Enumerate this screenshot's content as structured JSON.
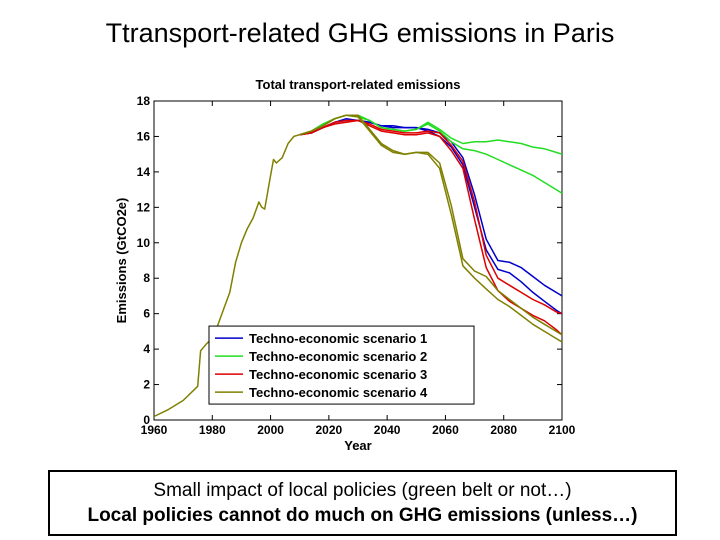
{
  "slide": {
    "title": "Ttransport-related GHG emissions in Paris",
    "caption_line1": "Small impact of  local policies (green belt or not…)",
    "caption_line2": "Local policies cannot do much on GHG emissions (unless…)"
  },
  "chart_data": {
    "type": "line",
    "title": "Total transport-related emissions",
    "xlabel": "Year",
    "ylabel": "Emissions (GtCO2e)",
    "xlim": [
      1960,
      2100
    ],
    "ylim": [
      0,
      18
    ],
    "xticks": [
      1960,
      1980,
      2000,
      2020,
      2040,
      2060,
      2080,
      2100
    ],
    "yticks": [
      0,
      2,
      4,
      6,
      8,
      10,
      12,
      14,
      16,
      18
    ],
    "legend_position": "bottom-center",
    "history": {
      "x": [
        1960,
        1965,
        1970,
        1975,
        1976,
        1978,
        1980,
        1982,
        1984,
        1986,
        1988,
        1990,
        1992,
        1994,
        1996,
        1997,
        1998,
        2000,
        2001,
        2002,
        2004,
        2006,
        2008,
        2010
      ],
      "y": [
        0.2,
        0.6,
        1.1,
        1.9,
        3.9,
        4.3,
        4.6,
        5.4,
        6.3,
        7.2,
        8.9,
        10.0,
        10.8,
        11.4,
        12.3,
        12.0,
        11.9,
        13.8,
        14.7,
        14.5,
        14.8,
        15.6,
        16.0,
        16.1
      ],
      "color": "#808000"
    },
    "series": [
      {
        "name": "Techno-economic scenario 1",
        "color": "#0000cc",
        "lines": [
          {
            "x": [
              2010,
              2014,
              2018,
              2022,
              2026,
              2030,
              2034,
              2038,
              2042,
              2046,
              2050,
              2054,
              2058,
              2062,
              2066,
              2070,
              2074,
              2078,
              2082,
              2086,
              2090,
              2094,
              2098,
              2100
            ],
            "y": [
              16.1,
              16.2,
              16.5,
              16.8,
              17.0,
              16.9,
              16.8,
              16.6,
              16.6,
              16.5,
              16.5,
              16.4,
              16.2,
              15.7,
              14.8,
              12.7,
              10.2,
              9.0,
              8.9,
              8.6,
              8.1,
              7.6,
              7.2,
              7.0
            ]
          },
          {
            "x": [
              2010,
              2014,
              2018,
              2022,
              2026,
              2030,
              2034,
              2038,
              2042,
              2046,
              2050,
              2054,
              2058,
              2062,
              2066,
              2070,
              2074,
              2078,
              2082,
              2086,
              2090,
              2094,
              2098,
              2100
            ],
            "y": [
              16.1,
              16.2,
              16.5,
              16.8,
              16.9,
              16.9,
              16.8,
              16.6,
              16.5,
              16.5,
              16.5,
              16.3,
              16.0,
              15.4,
              14.4,
              12.0,
              9.6,
              8.5,
              8.3,
              7.8,
              7.2,
              6.7,
              6.2,
              6.0
            ]
          }
        ]
      },
      {
        "name": "Techno-economic scenario 2",
        "color": "#22dd22",
        "lines": [
          {
            "x": [
              2010,
              2014,
              2018,
              2022,
              2026,
              2030,
              2034,
              2038,
              2042,
              2046,
              2050,
              2054,
              2058,
              2062,
              2066,
              2070,
              2074,
              2078,
              2082,
              2086,
              2090,
              2094,
              2098,
              2100
            ],
            "y": [
              16.1,
              16.3,
              16.7,
              17.0,
              17.2,
              17.2,
              16.9,
              16.5,
              16.4,
              16.3,
              16.4,
              16.8,
              16.4,
              15.9,
              15.6,
              15.7,
              15.7,
              15.8,
              15.7,
              15.6,
              15.4,
              15.3,
              15.1,
              15.0
            ]
          },
          {
            "x": [
              2010,
              2014,
              2018,
              2022,
              2026,
              2030,
              2034,
              2038,
              2042,
              2046,
              2050,
              2054,
              2058,
              2062,
              2066,
              2070,
              2074,
              2078,
              2082,
              2086,
              2090,
              2094,
              2098,
              2100
            ],
            "y": [
              16.1,
              16.3,
              16.7,
              17.0,
              17.2,
              17.1,
              16.9,
              16.5,
              16.4,
              16.3,
              16.4,
              16.7,
              16.3,
              15.7,
              15.3,
              15.2,
              15.0,
              14.7,
              14.4,
              14.1,
              13.8,
              13.4,
              13.0,
              12.8
            ]
          }
        ]
      },
      {
        "name": "Techno-economic scenario 3",
        "color": "#dd0000",
        "lines": [
          {
            "x": [
              2010,
              2014,
              2018,
              2022,
              2026,
              2030,
              2034,
              2038,
              2042,
              2046,
              2050,
              2054,
              2058,
              2062,
              2066,
              2070,
              2074,
              2078,
              2082,
              2086,
              2090,
              2094,
              2098,
              2100
            ],
            "y": [
              16.1,
              16.2,
              16.5,
              16.8,
              16.9,
              16.9,
              16.7,
              16.4,
              16.3,
              16.2,
              16.2,
              16.3,
              16.2,
              15.5,
              14.6,
              12.3,
              9.3,
              8.0,
              7.6,
              7.2,
              6.8,
              6.5,
              6.1,
              6.0
            ]
          },
          {
            "x": [
              2010,
              2014,
              2018,
              2022,
              2026,
              2030,
              2034,
              2038,
              2042,
              2046,
              2050,
              2054,
              2058,
              2062,
              2066,
              2070,
              2074,
              2078,
              2082,
              2086,
              2090,
              2094,
              2098,
              2100
            ],
            "y": [
              16.1,
              16.2,
              16.5,
              16.7,
              16.8,
              16.9,
              16.6,
              16.3,
              16.2,
              16.1,
              16.1,
              16.2,
              16.0,
              15.2,
              14.2,
              11.3,
              8.6,
              7.3,
              6.7,
              6.3,
              5.9,
              5.6,
              5.1,
              4.8
            ]
          }
        ]
      },
      {
        "name": "Techno-economic scenario 4",
        "color": "#808000",
        "lines": [
          {
            "x": [
              2010,
              2014,
              2018,
              2022,
              2026,
              2030,
              2034,
              2038,
              2042,
              2046,
              2050,
              2054,
              2058,
              2062,
              2066,
              2070,
              2074,
              2078,
              2082,
              2086,
              2090,
              2094,
              2098,
              2100
            ],
            "y": [
              16.1,
              16.3,
              16.6,
              17.0,
              17.2,
              17.2,
              16.4,
              15.6,
              15.2,
              15.0,
              15.1,
              15.1,
              14.5,
              12.1,
              9.1,
              8.4,
              8.1,
              7.3,
              6.8,
              6.3,
              5.8,
              5.4,
              5.0,
              4.8
            ]
          },
          {
            "x": [
              2010,
              2014,
              2018,
              2022,
              2026,
              2030,
              2034,
              2038,
              2042,
              2046,
              2050,
              2054,
              2058,
              2062,
              2066,
              2070,
              2074,
              2078,
              2082,
              2086,
              2090,
              2094,
              2098,
              2100
            ],
            "y": [
              16.1,
              16.3,
              16.6,
              17.0,
              17.2,
              17.1,
              16.3,
              15.5,
              15.1,
              15.0,
              15.1,
              15.0,
              14.2,
              11.6,
              8.7,
              8.0,
              7.4,
              6.8,
              6.4,
              5.9,
              5.4,
              5.0,
              4.6,
              4.4
            ]
          }
        ]
      }
    ]
  }
}
